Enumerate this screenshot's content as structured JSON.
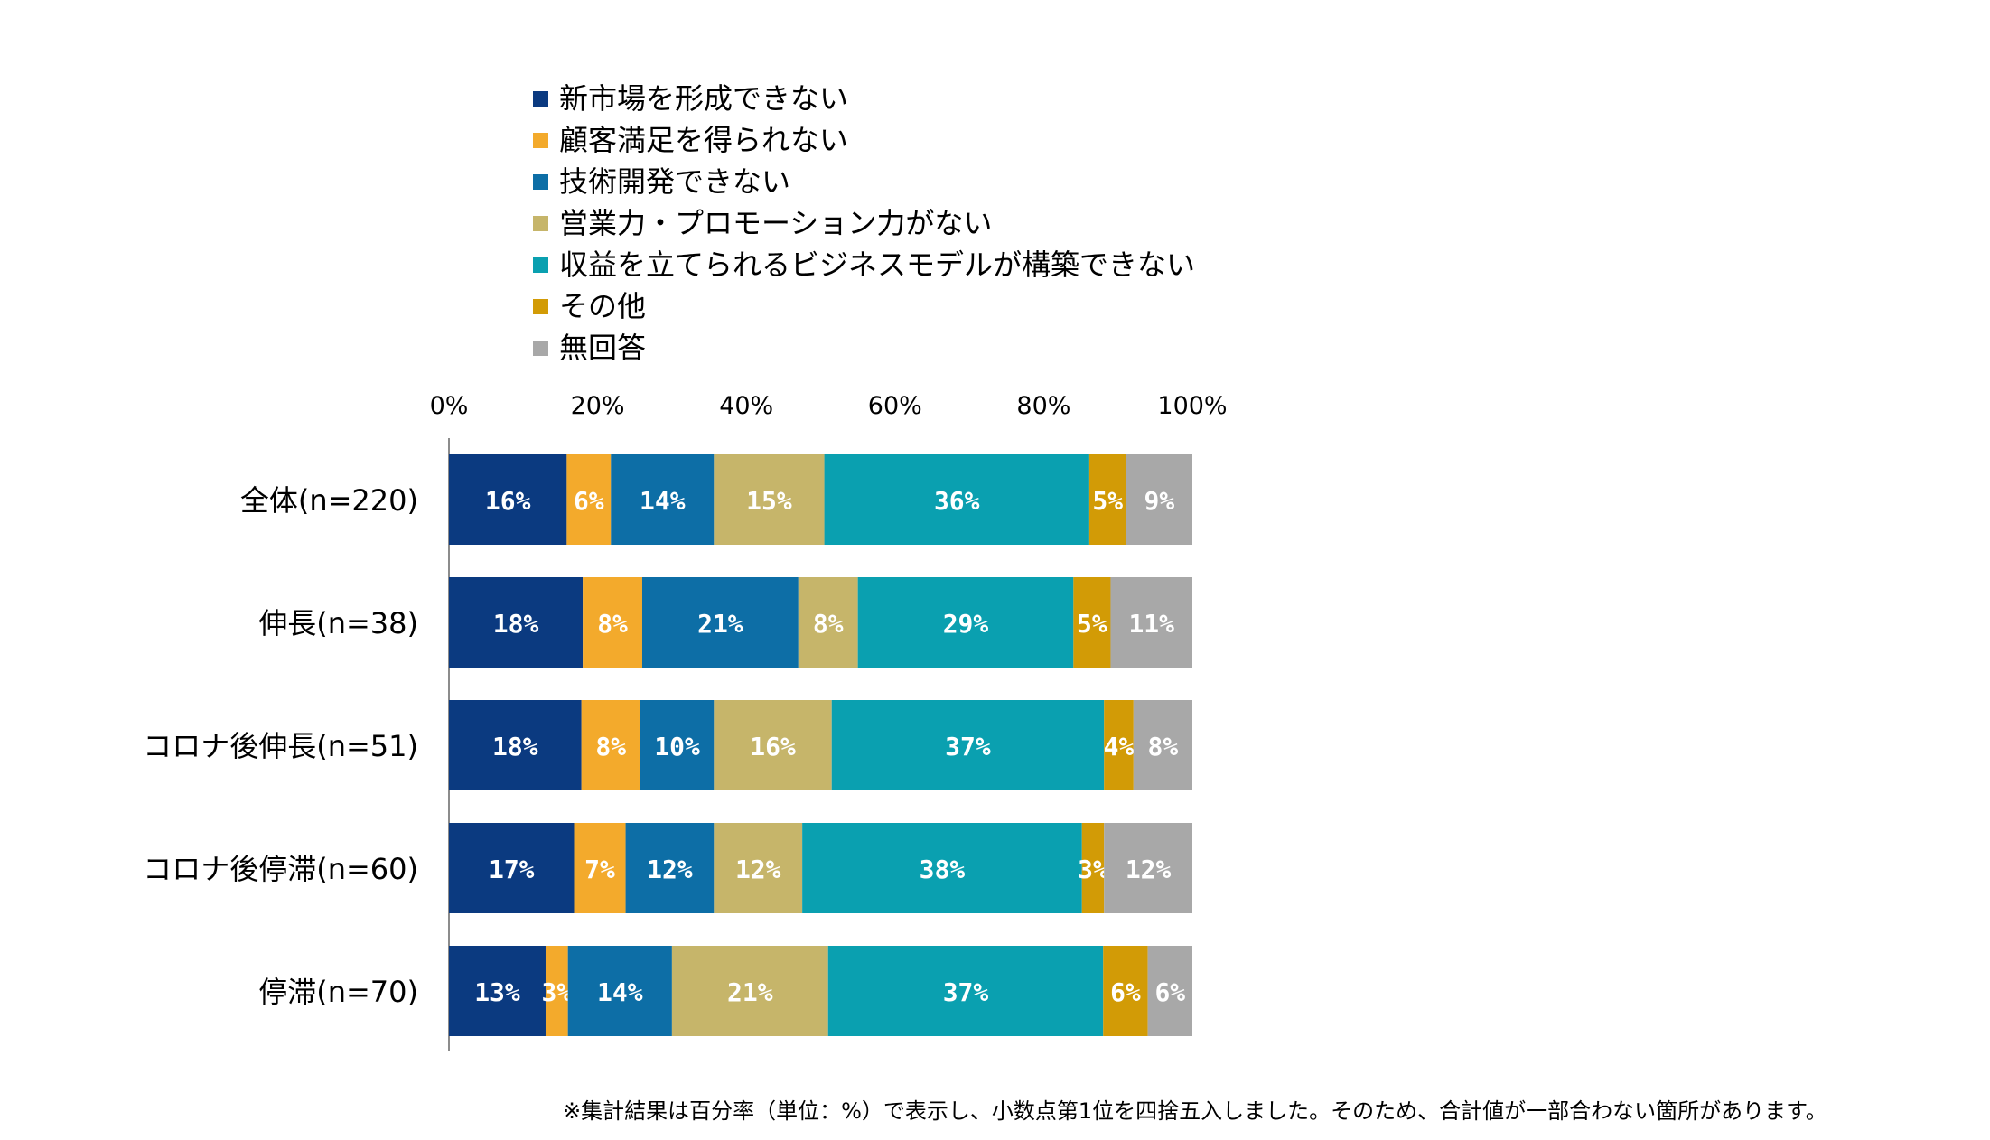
{
  "chart_data": {
    "type": "bar",
    "orientation": "horizontal-stacked-100",
    "title": "",
    "xlabel": "",
    "ylabel": "",
    "xlim": [
      0,
      100
    ],
    "x_ticks": [
      "0%",
      "20%",
      "40%",
      "60%",
      "80%",
      "100%"
    ],
    "categories": [
      "全体(n=220)",
      "伸長(n=38)",
      "コロナ後伸長(n=51)",
      "コロナ後停滞(n=60)",
      "停滞(n=70)"
    ],
    "series": [
      {
        "name": "新市場を形成できない",
        "color": "#0b3a80",
        "values": [
          16,
          18,
          18,
          17,
          13
        ]
      },
      {
        "name": "顧客満足を得られない",
        "color": "#f3aa2c",
        "values": [
          6,
          8,
          8,
          7,
          3
        ]
      },
      {
        "name": "技術開発できない",
        "color": "#0d6ea6",
        "values": [
          14,
          21,
          10,
          12,
          14
        ]
      },
      {
        "name": "営業力・プロモーション力がない",
        "color": "#c6b56a",
        "values": [
          15,
          8,
          16,
          12,
          21
        ]
      },
      {
        "name": "収益を立てられるビジネスモデルが構築できない",
        "color": "#0aa0b0",
        "values": [
          36,
          29,
          37,
          38,
          37
        ]
      },
      {
        "name": "その他",
        "color": "#d29b06",
        "values": [
          5,
          5,
          4,
          3,
          6
        ]
      },
      {
        "name": "無回答",
        "color": "#a8a8a8",
        "values": [
          9,
          11,
          8,
          12,
          6
        ]
      }
    ],
    "value_suffix": "%",
    "legend_position": "top",
    "grid": false
  },
  "footnote": "※集計結果は百分率（単位：%）で表示し、小数点第1位を四捨五入しました。そのため、合計値が一部合わない箇所があります。"
}
